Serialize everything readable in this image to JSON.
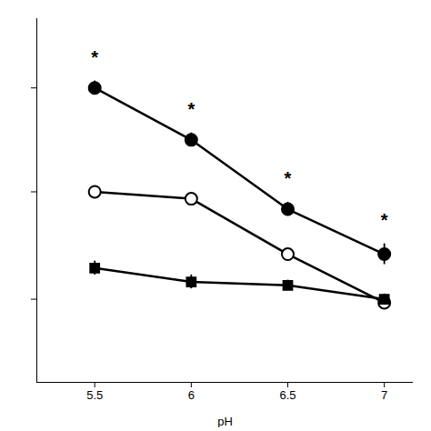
{
  "chart_data": {
    "type": "line",
    "x": [
      5.5,
      6.0,
      6.5,
      7.0
    ],
    "series": [
      {
        "color": "#000000",
        "marker": "circle",
        "values": [
          8.5,
          7.0,
          5.0,
          3.7
        ],
        "errors": [
          0.2,
          0.2,
          0.2,
          0.3
        ]
      },
      {
        "color": "#000000",
        "marker": "open_circle",
        "values": [
          5.5,
          5.3,
          3.7,
          2.3
        ],
        "errors": [
          0.15,
          0.15,
          0.15,
          0.15
        ]
      },
      {
        "color": "#000000",
        "marker": "square",
        "values": [
          3.3,
          2.9,
          2.8,
          2.4
        ],
        "errors": [
          0.2,
          0.2,
          0.15,
          0.15
        ]
      }
    ],
    "xlabel": "pH",
    "xlim": [
      5.2,
      7.15
    ],
    "ylim": [
      0.0,
      10.5
    ],
    "xticks": [
      5.5,
      6,
      6.5,
      7
    ],
    "yticks": [
      2.4,
      5.5,
      8.5
    ],
    "tick_labels": "x",
    "grid": false,
    "annotations": [
      {
        "text": "*",
        "x": 5.5,
        "y": 9.2
      },
      {
        "text": "*",
        "x": 6.0,
        "y": 7.7
      },
      {
        "text": "*",
        "x": 6.5,
        "y": 5.7
      },
      {
        "text": "*",
        "x": 7.0,
        "y": 4.5
      }
    ]
  }
}
